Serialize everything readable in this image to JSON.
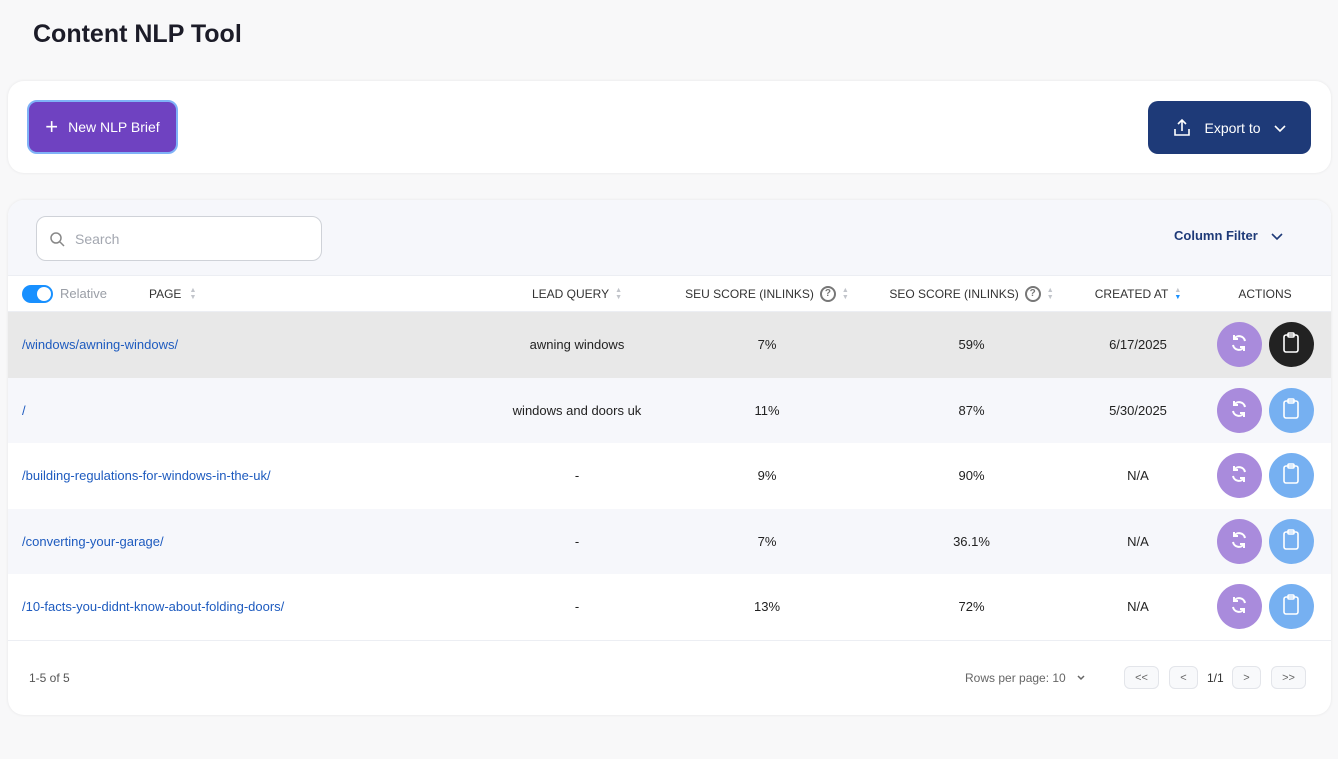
{
  "title": "Content NLP Tool",
  "toolbar": {
    "new_label": "New NLP Brief",
    "export_label": "Export to"
  },
  "search": {
    "placeholder": "Search",
    "value": ""
  },
  "column_filter": "Column Filter",
  "toggle": {
    "label": "Relative",
    "on": true
  },
  "headers": {
    "page": "PAGE",
    "lead_query": "LEAD QUERY",
    "seu": "SEU SCORE (INLINKS)",
    "seo": "SEO SCORE (INLINKS)",
    "created": "CREATED AT",
    "actions": "ACTIONS"
  },
  "rows": [
    {
      "page": "/windows/awning-windows/",
      "lead_query": "awning windows",
      "seu": "7%",
      "seo": "59%",
      "created": "6/17/2025"
    },
    {
      "page": "/",
      "lead_query": "windows and doors uk",
      "seu": "11%",
      "seo": "87%",
      "created": "5/30/2025"
    },
    {
      "page": "/building-regulations-for-windows-in-the-uk/",
      "lead_query": "-",
      "seu": "9%",
      "seo": "90%",
      "created": "N/A"
    },
    {
      "page": "/converting-your-garage/",
      "lead_query": "-",
      "seu": "7%",
      "seo": "36.1%",
      "created": "N/A"
    },
    {
      "page": "/10-facts-you-didnt-know-about-folding-doors/",
      "lead_query": "-",
      "seu": "13%",
      "seo": "72%",
      "created": "N/A"
    }
  ],
  "footer": {
    "count": "1-5 of 5",
    "rows_per_page": "Rows per page: 10",
    "page": "1/1",
    "first": "<<",
    "prev": "<",
    "next": ">",
    "last": ">>"
  },
  "colors": {
    "primary": "#6f42c1",
    "export": "#1e3a78",
    "link": "#1e5bbf",
    "refresh": "#a98bdc",
    "copy": "#76b0f1",
    "copy_active": "#222222"
  }
}
